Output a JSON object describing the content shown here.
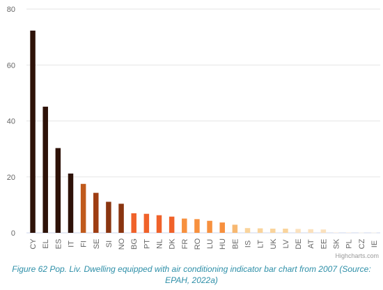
{
  "chart_data": {
    "type": "bar",
    "categories": [
      "CY",
      "EL",
      "ES",
      "IT",
      "FI",
      "SE",
      "SI",
      "NO",
      "BG",
      "PT",
      "NL",
      "DK",
      "FR",
      "RO",
      "LU",
      "HU",
      "BE",
      "IS",
      "LT",
      "UK",
      "LV",
      "DE",
      "AT",
      "EE",
      "SK",
      "PL",
      "CZ",
      "IE"
    ],
    "values": [
      72.3,
      45.1,
      30.3,
      21.2,
      17.5,
      14.3,
      11.1,
      10.4,
      7.0,
      6.8,
      6.3,
      5.8,
      5.1,
      4.9,
      4.3,
      3.7,
      2.9,
      1.7,
      1.6,
      1.5,
      1.5,
      1.4,
      1.3,
      1.2,
      0.2,
      0.2,
      0.1,
      0.1
    ],
    "colors": [
      "#2e1208",
      "#2e1208",
      "#2e1208",
      "#2e1208",
      "#c05a1c",
      "#9e3d12",
      "#8a3510",
      "#8a3510",
      "#f0622a",
      "#f0622a",
      "#f0622a",
      "#f0622a",
      "#f7903e",
      "#f7903e",
      "#f7903e",
      "#f7903e",
      "#f7b871",
      "#fad49c",
      "#fad49c",
      "#fad49c",
      "#fad49c",
      "#fbe1bd",
      "#fbe1bd",
      "#fbe1bd",
      "#fdf0e0",
      "#fdf0e0",
      "#fdf0e0",
      "#fdf0e0"
    ],
    "ylim": [
      0,
      80
    ],
    "yticks": [
      0,
      20,
      40,
      60,
      80
    ],
    "grid": true,
    "title": "",
    "xlabel": "",
    "ylabel": ""
  },
  "credits": "Highcharts.com",
  "caption": "Figure 62 Pop. Liv. Dwelling equipped with air conditioning indicator bar chart from 2007 (Source: EPAH, 2022a)"
}
